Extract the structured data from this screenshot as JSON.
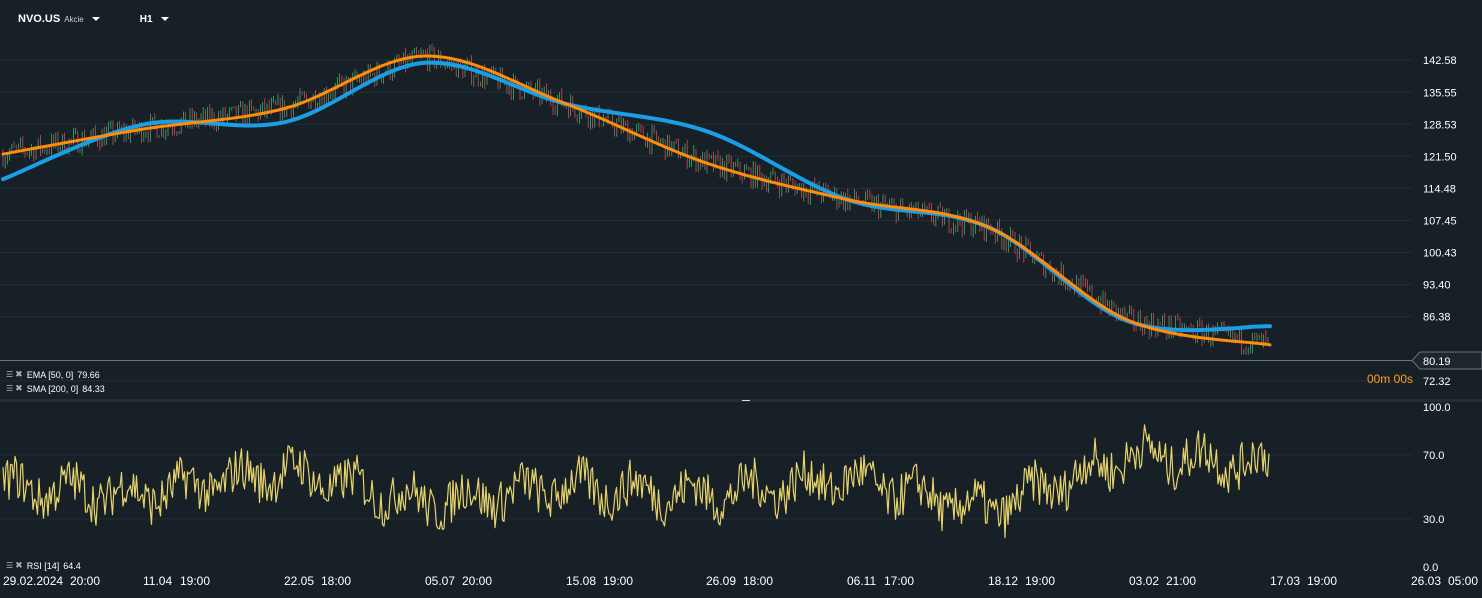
{
  "header": {
    "symbol": "NVO.US",
    "asset_type": "Akcie",
    "timeframe": "H1"
  },
  "indicators": {
    "ema": {
      "label": "EMA [50, 0]",
      "value": "79.66",
      "color": "#ff8c0a"
    },
    "sma": {
      "label": "SMA [200, 0]",
      "value": "84.33",
      "color": "#1a9ee6"
    },
    "rsi": {
      "label": "RSI [14]",
      "value": "64.4",
      "color": "#e6d36a"
    }
  },
  "countdown": {
    "minutes": "00m",
    "seconds": "00s"
  },
  "colors": {
    "background": "#172027",
    "bull": "#3aaf6a",
    "bear": "#d04a55",
    "grid": "#222d35",
    "text": "#ffffff"
  },
  "chart_data": [
    {
      "type": "line",
      "title": "",
      "series": [
        {
          "name": "EMA [50, 0]",
          "x": [
            "29.02.2024 20:00",
            "11.04 19:00",
            "22.05 18:00",
            "05.07 20:00",
            "15.08 19:00",
            "26.09 18:00",
            "06.11 17:00",
            "18.12 19:00",
            "03.02 21:00",
            "17.03 19:00"
          ],
          "values": [
            122,
            127.5,
            132,
            143.5,
            133,
            120,
            112,
            106,
            85.5,
            80.2
          ]
        },
        {
          "name": "SMA [200, 0]",
          "x": [
            "29.02.2024 20:00",
            "11.04 19:00",
            "22.05 18:00",
            "05.07 20:00",
            "15.08 19:00",
            "26.09 18:00",
            "06.11 17:00",
            "18.12 19:00",
            "03.02 21:00",
            "17.03 19:00"
          ],
          "values": [
            116.5,
            128.5,
            129,
            142,
            133,
            127,
            112,
            106,
            85.3,
            84.3
          ]
        }
      ],
      "y_ticks": [
        "142.58",
        "135.55",
        "128.53",
        "121.50",
        "114.48",
        "107.45",
        "100.43",
        "93.40",
        "86.38",
        "72.32"
      ],
      "current_price": "80.19",
      "ylim": [
        69,
        147
      ]
    },
    {
      "type": "line",
      "series": [
        {
          "name": "RSI [14]",
          "x": [
            "29.02.2024 20:00",
            "11.04 19:00",
            "22.05 18:00",
            "05.07 20:00",
            "15.08 19:00",
            "26.09 18:00",
            "06.11 17:00",
            "18.12 19:00",
            "03.02 21:00",
            "17.03 19:00"
          ],
          "values": [
            50,
            45,
            60,
            40,
            50,
            45,
            55,
            35,
            70,
            64.4
          ]
        }
      ],
      "y_ticks": [
        "100.0",
        "70.0",
        "30.0",
        "0.0"
      ],
      "ylim": [
        0,
        100
      ]
    }
  ],
  "x_ticks": [
    "29.02.2024",
    "20:00",
    "11.04",
    "19:00",
    "22.05",
    "18:00",
    "05.07",
    "20:00",
    "15.08",
    "19:00",
    "26.09",
    "18:00",
    "06.11",
    "17:00",
    "18.12",
    "19:00",
    "03.02",
    "21:00",
    "17.03",
    "19:00",
    "26.03",
    "05:00"
  ]
}
